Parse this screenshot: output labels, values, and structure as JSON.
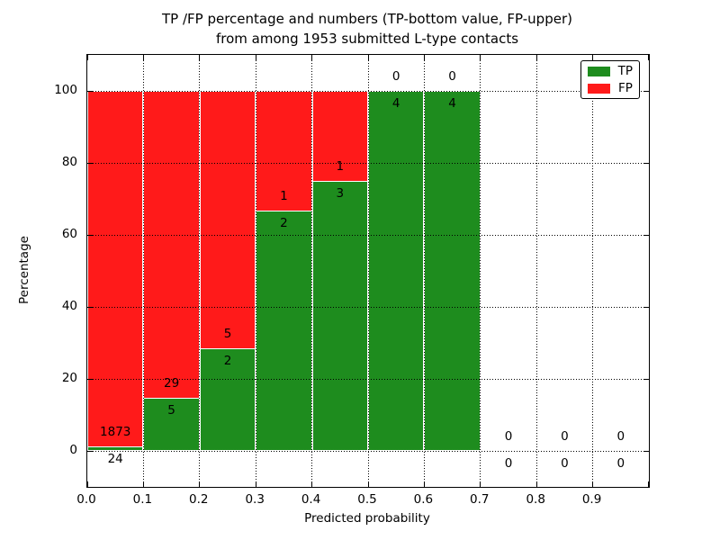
{
  "title": {
    "line1": "TP /FP percentage and numbers (TP-bottom value, FP-upper)",
    "line2": "from among 1953 submitted L-type contacts"
  },
  "axes": {
    "xlabel": "Predicted probability",
    "ylabel": "Percentage"
  },
  "legend": {
    "items": [
      {
        "label": "TP",
        "color": "#1e8c1e",
        "icon": "green-swatch"
      },
      {
        "label": "FP",
        "color": "#ff1a1a",
        "icon": "red-swatch"
      }
    ],
    "position": "upper right"
  },
  "chart_data": {
    "type": "bar",
    "stacked": true,
    "title": "TP /FP percentage and numbers (TP-bottom value, FP-upper) from among 1953 submitted L-type contacts",
    "xlabel": "Predicted probability",
    "ylabel": "Percentage",
    "xlim": [
      0.0,
      1.0
    ],
    "ylim": [
      -10,
      110
    ],
    "x_tick_labels": [
      "0.0",
      "0.1",
      "0.2",
      "0.3",
      "0.4",
      "0.5",
      "0.6",
      "0.7",
      "0.8",
      "0.9"
    ],
    "x_ticks": [
      0.0,
      0.1,
      0.2,
      0.3,
      0.4,
      0.5,
      0.6,
      0.7,
      0.8,
      0.9,
      1.0
    ],
    "y_ticks": [
      0,
      20,
      40,
      60,
      80,
      100
    ],
    "x_gridlines": [
      0.1,
      0.2,
      0.3,
      0.4,
      0.5,
      0.6,
      0.7,
      0.8,
      0.9
    ],
    "grid_style": "dotted",
    "colors": {
      "tp": "#1e8c1e",
      "fp": "#ff1a1a",
      "bar_edge": "#ffffff",
      "text": "#000000"
    },
    "value_semantics": "green bar height = TP/(TP+FP)*100 per bin; printed numbers: TP count below boundary, FP count above boundary",
    "bins": [
      {
        "x0": 0.0,
        "x1": 0.1,
        "tp": 24,
        "fp": 1873
      },
      {
        "x0": 0.1,
        "x1": 0.2,
        "tp": 5,
        "fp": 29
      },
      {
        "x0": 0.2,
        "x1": 0.3,
        "tp": 2,
        "fp": 5
      },
      {
        "x0": 0.3,
        "x1": 0.4,
        "tp": 2,
        "fp": 1
      },
      {
        "x0": 0.4,
        "x1": 0.5,
        "tp": 3,
        "fp": 1
      },
      {
        "x0": 0.5,
        "x1": 0.6,
        "tp": 4,
        "fp": 0
      },
      {
        "x0": 0.6,
        "x1": 0.7,
        "tp": 4,
        "fp": 0
      },
      {
        "x0": 0.7,
        "x1": 0.8,
        "tp": 0,
        "fp": 0
      },
      {
        "x0": 0.8,
        "x1": 0.9,
        "tp": 0,
        "fp": 0
      },
      {
        "x0": 0.9,
        "x1": 1.0,
        "tp": 0,
        "fp": 0
      }
    ]
  }
}
